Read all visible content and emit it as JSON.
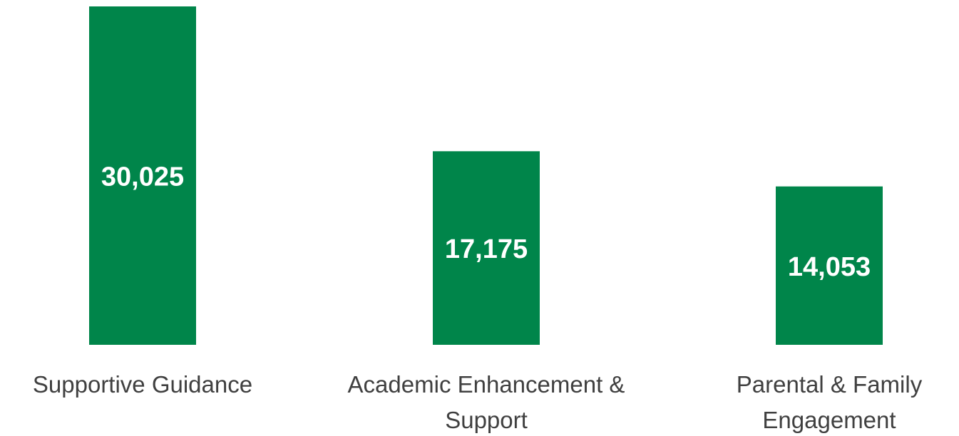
{
  "chart_data": {
    "type": "bar",
    "categories": [
      "Supportive Guidance",
      "Academic Enhancement & Support",
      "Parental & Family Engagement"
    ],
    "values": [
      30025,
      17175,
      14053
    ],
    "value_labels": [
      "30,025",
      "17,175",
      "14,053"
    ],
    "color": "#00854a"
  }
}
